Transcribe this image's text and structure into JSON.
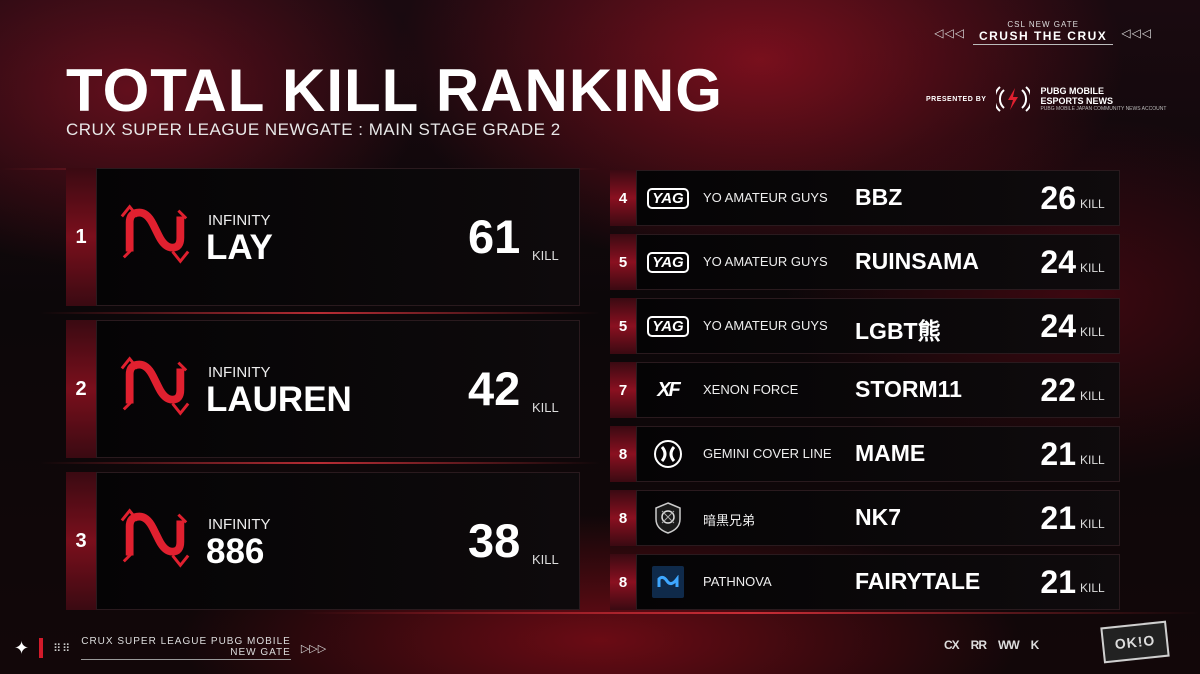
{
  "header": {
    "gate_sub": "CSL NEW GATE",
    "gate_main": "CRUSH THE CRUX",
    "left_arrows": "◁◁◁",
    "right_arrows": "◁◁◁",
    "title": "TOTAL KILL RANKING",
    "subtitle": "CRUX SUPER LEAGUE NEWGATE : MAIN STAGE GRADE 2",
    "presented_by": "PRESENTED BY",
    "presenter_line1": "PUBG MOBILE",
    "presenter_line2": "ESPORTS NEWS",
    "presenter_line3": "PUBG MOBILE JAPAN COMMUNITY NEWS ACCOUNT"
  },
  "kill_label": "KILL",
  "top3": [
    {
      "rank": "1",
      "team": "INFINITY",
      "player": "LAY",
      "kills": "61",
      "logo": "infinity-logo"
    },
    {
      "rank": "2",
      "team": "INFINITY",
      "player": "LAUREN",
      "kills": "42",
      "logo": "infinity-logo"
    },
    {
      "rank": "3",
      "team": "INFINITY",
      "player": "886",
      "kills": "38",
      "logo": "infinity-logo"
    }
  ],
  "list": [
    {
      "rank": "4",
      "team": "YO AMATEUR GUYS",
      "player": "BBZ",
      "kills": "26",
      "logo": "yag-logo",
      "logo_text": "YAG"
    },
    {
      "rank": "5",
      "team": "YO AMATEUR GUYS",
      "player": "RUINSAMA",
      "kills": "24",
      "logo": "yag-logo",
      "logo_text": "YAG"
    },
    {
      "rank": "5",
      "team": "YO AMATEUR GUYS",
      "player": "LGBT熊",
      "kills": "24",
      "logo": "yag-logo",
      "logo_text": "YAG"
    },
    {
      "rank": "7",
      "team": "XENON FORCE",
      "player": "STORM11",
      "kills": "22",
      "logo": "xenon-force-logo",
      "logo_text": "XF"
    },
    {
      "rank": "8",
      "team": "GEMINI COVER LINE",
      "player": "MAME",
      "kills": "21",
      "logo": "gemini-logo",
      "logo_text": ""
    },
    {
      "rank": "8",
      "team": "暗黒兄弟",
      "player": "NK7",
      "kills": "21",
      "logo": "ankoku-kyoudai-logo",
      "logo_text": ""
    },
    {
      "rank": "8",
      "team": "PATHNOVA",
      "player": "FAIRYTALE",
      "kills": "21",
      "logo": "pathnova-logo",
      "logo_text": ""
    }
  ],
  "footer": {
    "line1": "CRUX SUPER LEAGUE PUBG MOBILE",
    "line2": "NEW GATE",
    "arrows": "▷▷▷",
    "dots": "⠿⠿",
    "sponsors": [
      "CX",
      "RR",
      "WW",
      "K"
    ],
    "badge": "OK!O"
  },
  "colors": {
    "accent": "#d21a2a",
    "background": "#0a0a0c",
    "panel": "#0b0809"
  }
}
